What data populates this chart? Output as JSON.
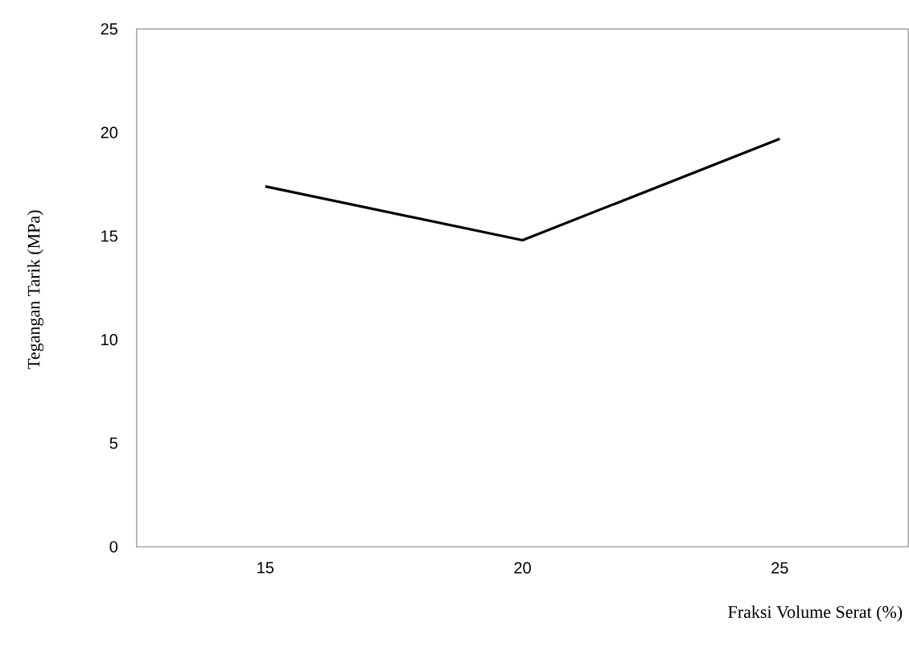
{
  "chart_data": {
    "type": "line",
    "xlabel": "Fraksi Volume Serat (%)",
    "ylabel": "Tegangan Tarik (MPa)",
    "categories": [
      "15",
      "20",
      "25"
    ],
    "series": [
      {
        "color": "#000000",
        "values": [
          17.4,
          14.8,
          19.7
        ]
      }
    ],
    "ylim": [
      0,
      25
    ],
    "yticks": [
      0,
      5,
      10,
      15,
      20,
      25
    ],
    "grid": false,
    "marker": "none",
    "line_style": "solid"
  }
}
